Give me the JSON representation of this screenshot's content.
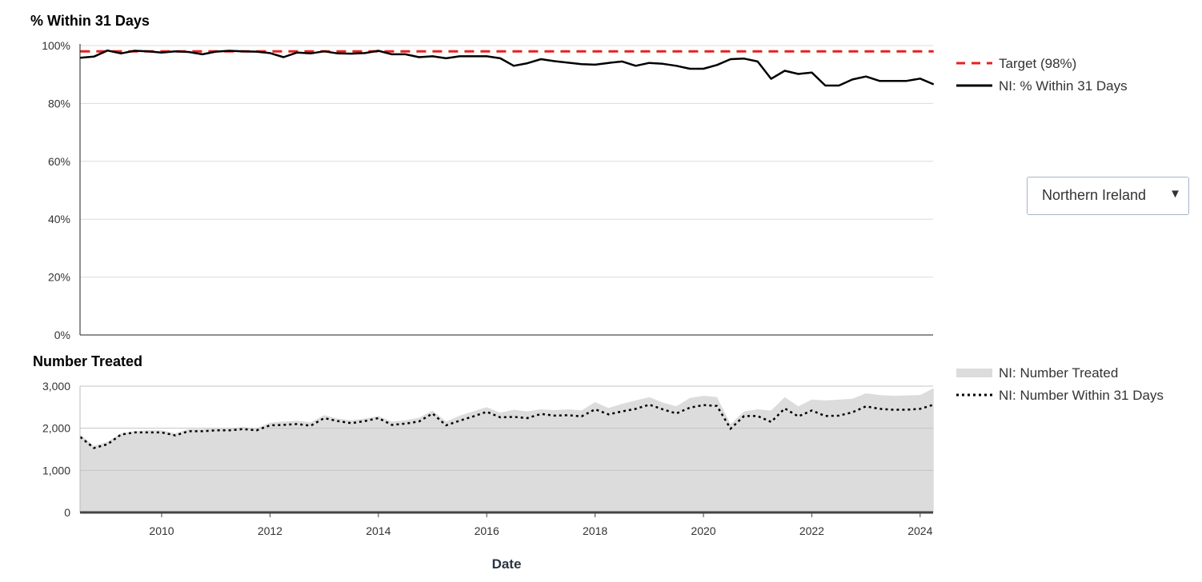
{
  "region_select": {
    "value": "Northern Ireland",
    "arrow": "▼"
  },
  "xlabel": "Date",
  "chart_data": [
    {
      "type": "line",
      "title": "% Within 31 Days",
      "ylim": [
        0,
        100
      ],
      "yticks": [
        "0%",
        "20%",
        "40%",
        "60%",
        "80%",
        "100%"
      ],
      "grid": true,
      "legend_position": "right",
      "x": [
        "2008-07",
        "2008-10",
        "2009-01",
        "2009-04",
        "2009-07",
        "2009-10",
        "2010-01",
        "2010-04",
        "2010-07",
        "2010-10",
        "2011-01",
        "2011-04",
        "2011-07",
        "2011-10",
        "2012-01",
        "2012-04",
        "2012-07",
        "2012-10",
        "2013-01",
        "2013-04",
        "2013-07",
        "2013-10",
        "2014-01",
        "2014-04",
        "2014-07",
        "2014-10",
        "2015-01",
        "2015-04",
        "2015-07",
        "2015-10",
        "2016-01",
        "2016-04",
        "2016-07",
        "2016-10",
        "2017-01",
        "2017-04",
        "2017-07",
        "2017-10",
        "2018-01",
        "2018-04",
        "2018-07",
        "2018-10",
        "2019-01",
        "2019-04",
        "2019-07",
        "2019-10",
        "2020-01",
        "2020-04",
        "2020-07",
        "2020-10",
        "2021-01",
        "2021-04",
        "2021-07",
        "2021-10",
        "2022-01",
        "2022-04",
        "2022-07",
        "2022-10",
        "2023-01",
        "2023-04",
        "2023-07",
        "2023-10",
        "2024-01",
        "2024-04"
      ],
      "series": [
        {
          "name": "Target (98%)",
          "color": "#e8201e",
          "dash": "dashed",
          "values": [
            98,
            98,
            98,
            98,
            98,
            98,
            98,
            98,
            98,
            98,
            98,
            98,
            98,
            98,
            98,
            98,
            98,
            98,
            98,
            98,
            98,
            98,
            98,
            98,
            98,
            98,
            98,
            98,
            98,
            98,
            98,
            98,
            98,
            98,
            98,
            98,
            98,
            98,
            98,
            98,
            98,
            98,
            98,
            98,
            98,
            98,
            98,
            98,
            98,
            98,
            98,
            98,
            98,
            98,
            98,
            98,
            98,
            98,
            98,
            98,
            98,
            98,
            98,
            98
          ]
        },
        {
          "name": "NI: % Within 31 Days",
          "color": "#000000",
          "dash": "solid",
          "values": [
            95.8,
            96.2,
            98.3,
            97.3,
            98.2,
            98,
            97.6,
            98,
            97.8,
            97,
            97.9,
            98.2,
            98,
            97.9,
            97.4,
            96,
            97.6,
            97.3,
            98,
            97.3,
            97.2,
            97.4,
            98.2,
            97,
            97,
            96,
            96.3,
            95.6,
            96.3,
            96.3,
            96.3,
            95.6,
            93,
            93.9,
            95.3,
            94.6,
            94.1,
            93.6,
            93.4,
            94,
            94.5,
            93,
            94,
            93.7,
            93,
            92,
            92,
            93.3,
            95.3,
            95.5,
            94.5,
            88.5,
            91.3,
            90.2,
            90.7,
            86.2,
            86.2,
            88.3,
            89.3,
            87.8,
            87.8,
            87.8,
            88.6,
            86.6
          ]
        }
      ]
    },
    {
      "type": "area",
      "title": "Number Treated",
      "ylim": [
        0,
        3000
      ],
      "yticks": [
        "0",
        "1,000",
        "2,000",
        "3,000"
      ],
      "xticks": [
        "2010",
        "2012",
        "2014",
        "2016",
        "2018",
        "2020",
        "2022",
        "2024"
      ],
      "grid": true,
      "legend_position": "right",
      "x": [
        "2008-07",
        "2008-10",
        "2009-01",
        "2009-04",
        "2009-07",
        "2009-10",
        "2010-01",
        "2010-04",
        "2010-07",
        "2010-10",
        "2011-01",
        "2011-04",
        "2011-07",
        "2011-10",
        "2012-01",
        "2012-04",
        "2012-07",
        "2012-10",
        "2013-01",
        "2013-04",
        "2013-07",
        "2013-10",
        "2014-01",
        "2014-04",
        "2014-07",
        "2014-10",
        "2015-01",
        "2015-04",
        "2015-07",
        "2015-10",
        "2016-01",
        "2016-04",
        "2016-07",
        "2016-10",
        "2017-01",
        "2017-04",
        "2017-07",
        "2017-10",
        "2018-01",
        "2018-04",
        "2018-07",
        "2018-10",
        "2019-01",
        "2019-04",
        "2019-07",
        "2019-10",
        "2020-01",
        "2020-04",
        "2020-07",
        "2020-10",
        "2021-01",
        "2021-04",
        "2021-07",
        "2021-10",
        "2022-01",
        "2022-04",
        "2022-07",
        "2022-10",
        "2023-01",
        "2023-04",
        "2023-07",
        "2023-10",
        "2024-01",
        "2024-04"
      ],
      "series": [
        {
          "name": "NI: Number Treated",
          "color": "#dcdcdc",
          "style": "area",
          "values": [
            1850,
            1580,
            1680,
            1880,
            1930,
            1950,
            1950,
            1880,
            1980,
            1980,
            2000,
            2000,
            2030,
            2000,
            2130,
            2160,
            2180,
            2140,
            2310,
            2230,
            2190,
            2230,
            2290,
            2160,
            2190,
            2250,
            2420,
            2160,
            2300,
            2400,
            2500,
            2370,
            2440,
            2400,
            2450,
            2430,
            2450,
            2420,
            2620,
            2480,
            2580,
            2660,
            2740,
            2610,
            2520,
            2720,
            2770,
            2740,
            2100,
            2400,
            2450,
            2420,
            2740,
            2520,
            2680,
            2660,
            2680,
            2700,
            2830,
            2790,
            2770,
            2780,
            2790,
            2950
          ]
        },
        {
          "name": "NI: Number Within 31 Days",
          "color": "#000000",
          "style": "dotted",
          "values": [
            1790,
            1530,
            1620,
            1850,
            1900,
            1900,
            1900,
            1830,
            1930,
            1930,
            1950,
            1950,
            1980,
            1950,
            2070,
            2080,
            2100,
            2060,
            2240,
            2170,
            2120,
            2170,
            2240,
            2080,
            2110,
            2160,
            2350,
            2070,
            2180,
            2280,
            2390,
            2260,
            2270,
            2240,
            2340,
            2300,
            2310,
            2280,
            2450,
            2330,
            2400,
            2460,
            2560,
            2450,
            2350,
            2490,
            2550,
            2530,
            1990,
            2290,
            2290,
            2150,
            2470,
            2280,
            2420,
            2290,
            2300,
            2380,
            2520,
            2460,
            2440,
            2440,
            2460,
            2560
          ]
        }
      ]
    }
  ]
}
